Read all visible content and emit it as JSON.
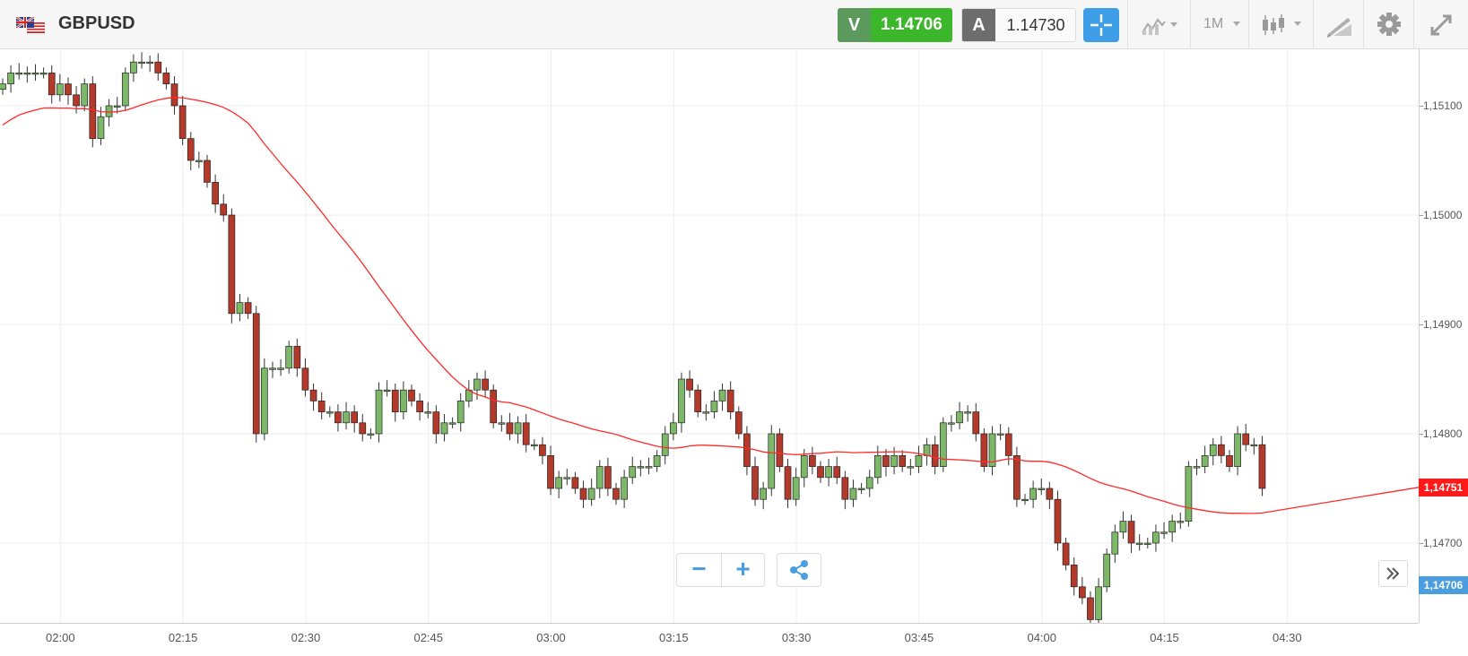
{
  "header": {
    "symbol": "GBPUSD",
    "flag_icon": "gbp-usd-flag-icon",
    "sell": {
      "tag": "V",
      "price": "1.14706",
      "color": "#3cb62a"
    },
    "buy": {
      "tag": "A",
      "price": "1.14730"
    },
    "timeframe": "1M",
    "icons": [
      "crosshair-icon",
      "chart-type-icon",
      "candlestick-icon",
      "drawing-tool-icon",
      "gear-icon",
      "fullscreen-icon"
    ]
  },
  "yaxis": {
    "ticks": [
      {
        "value": 1.151,
        "label": "1,15100"
      },
      {
        "value": 1.15,
        "label": "1,15000"
      },
      {
        "value": 1.149,
        "label": "1,14900"
      },
      {
        "value": 1.148,
        "label": "1,14800"
      },
      {
        "value": 1.147,
        "label": "1,14700"
      }
    ]
  },
  "markers": {
    "ma": {
      "label": "1,14751",
      "value": 1.14751,
      "color": "#ff1a1a"
    },
    "bid": {
      "label": "1,14706",
      "value": 1.14706,
      "color": "#4a9ee0"
    }
  },
  "controls": {
    "zoom_out": "−",
    "zoom_in": "+",
    "share_icon": "share-icon",
    "scroll_icon": "double-chevron-right-icon"
  },
  "chart_data": {
    "type": "candlestick",
    "symbol": "GBPUSD",
    "interval": "1M",
    "x_ticks": [
      "02:00",
      "02:15",
      "02:30",
      "02:45",
      "03:00",
      "03:15",
      "03:30",
      "03:45",
      "04:00",
      "04:15",
      "04:30"
    ],
    "ylim": [
      1.1462,
      1.1516
    ],
    "grid": true,
    "start_time": "01:53",
    "up_color": "#7cb868",
    "down_color": "#b33a2a",
    "closes": [
      1.1512,
      1.1513,
      1.1513,
      1.1513,
      1.1513,
      1.1513,
      1.1511,
      1.1512,
      1.1511,
      1.151,
      1.1512,
      1.1507,
      1.1509,
      1.151,
      1.151,
      1.1513,
      1.1514,
      1.1514,
      1.1514,
      1.1513,
      1.1512,
      1.151,
      1.1507,
      1.1505,
      1.1505,
      1.1503,
      1.1501,
      1.15,
      1.1491,
      1.1492,
      1.1491,
      1.148,
      1.1486,
      1.1486,
      1.1486,
      1.1488,
      1.1486,
      1.1484,
      1.1483,
      1.1482,
      1.1482,
      1.1481,
      1.1482,
      1.1481,
      1.148,
      1.148,
      1.1484,
      1.1484,
      1.1482,
      1.1484,
      1.1483,
      1.1482,
      1.1482,
      1.148,
      1.1481,
      1.1481,
      1.1483,
      1.1484,
      1.1485,
      1.1484,
      1.1481,
      1.1481,
      1.148,
      1.1481,
      1.1479,
      1.1479,
      1.1478,
      1.1475,
      1.1476,
      1.1476,
      1.1475,
      1.1474,
      1.1475,
      1.1477,
      1.1475,
      1.1474,
      1.1476,
      1.1477,
      1.1477,
      1.1477,
      1.1478,
      1.148,
      1.1481,
      1.1485,
      1.1484,
      1.1482,
      1.1482,
      1.1483,
      1.1484,
      1.1482,
      1.148,
      1.1477,
      1.1474,
      1.1475,
      1.148,
      1.1477,
      1.1474,
      1.1476,
      1.1478,
      1.1477,
      1.1476,
      1.1477,
      1.1476,
      1.1474,
      1.1475,
      1.1475,
      1.1476,
      1.1478,
      1.1477,
      1.1478,
      1.1477,
      1.1477,
      1.1478,
      1.1479,
      1.1477,
      1.1481,
      1.1481,
      1.1482,
      1.1482,
      1.148,
      1.1477,
      1.148,
      1.148,
      1.1478,
      1.1474,
      1.1474,
      1.1475,
      1.1475,
      1.1474,
      1.147,
      1.1468,
      1.1466,
      1.1465,
      1.1463,
      1.1466,
      1.1469,
      1.1471,
      1.1472,
      1.147,
      1.147,
      1.147,
      1.1471,
      1.1471,
      1.1472,
      1.1472,
      1.1477,
      1.1477,
      1.1478,
      1.1479,
      1.1478,
      1.1477,
      1.148,
      1.1479,
      1.1479,
      1.1475
    ]
  }
}
